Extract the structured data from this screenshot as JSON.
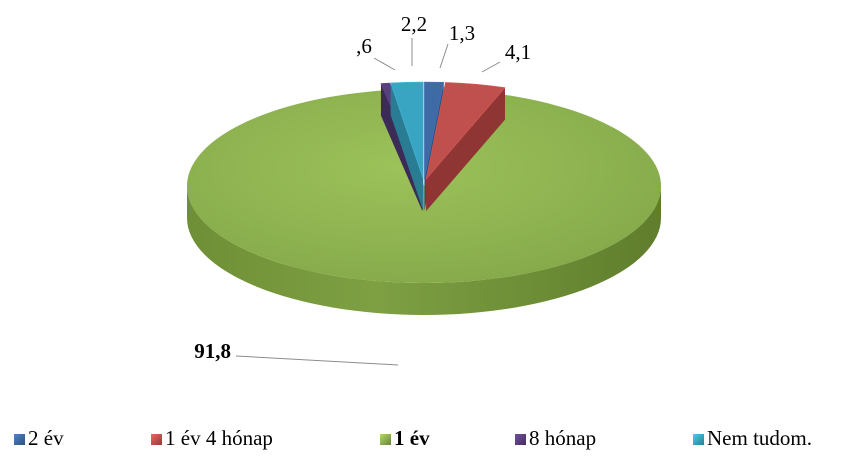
{
  "chart_data": {
    "type": "pie",
    "style": "3d-exploded",
    "start_angle_deg": 0,
    "direction": "clockwise",
    "title": "",
    "slices": [
      {
        "label": "2 év",
        "value": 1.3,
        "value_label": "1,3",
        "color": "#3e6aa5",
        "legend_bold": false
      },
      {
        "label": "1 év 4 hónap",
        "value": 4.1,
        "value_label": "4,1",
        "color": "#c0504d",
        "legend_bold": false
      },
      {
        "label": "1 év",
        "value": 91.8,
        "value_label": "91,8",
        "color": "#8db04e",
        "legend_bold": true
      },
      {
        "label": "8 hónap",
        "value": 0.6,
        "value_label": ",6",
        "color": "#5a3f7e",
        "legend_bold": false
      },
      {
        "label": "Nem tudom.",
        "value": 2.2,
        "value_label": "2,2",
        "color": "#3aa5c2",
        "legend_bold": false
      }
    ],
    "legend_position": "bottom"
  }
}
